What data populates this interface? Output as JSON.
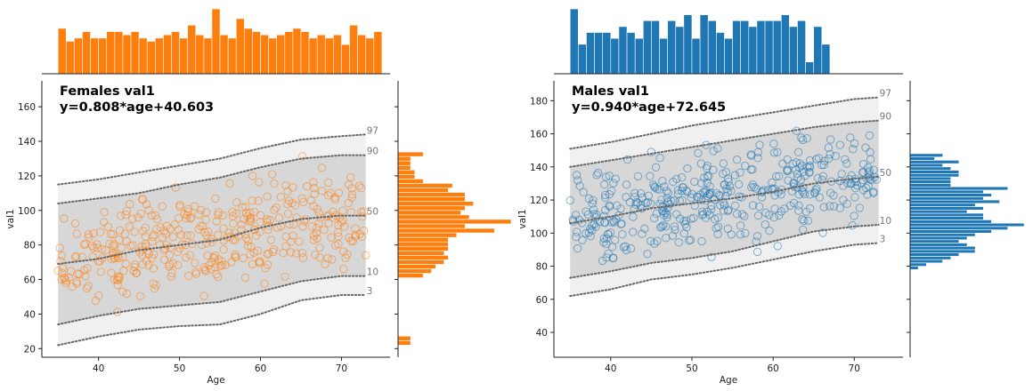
{
  "chart_data": [
    {
      "type": "scatter",
      "name": "females",
      "color": "#ff7f0e",
      "title_line1": "Females val1",
      "title_line2": "y=0.808*age+40.603",
      "xlabel": "Age",
      "ylabel": "val1",
      "xlim": [
        33,
        76
      ],
      "ylim": [
        15,
        175
      ],
      "xticks": [
        40,
        50,
        60,
        70
      ],
      "yticks": [
        20,
        40,
        60,
        80,
        100,
        120,
        140,
        160
      ],
      "regression": {
        "slope": 0.808,
        "intercept": 40.603
      },
      "percentiles": [
        {
          "label": "3",
          "x": [
            35,
            40,
            45,
            50,
            55,
            60,
            65,
            70,
            73
          ],
          "y": [
            22,
            27,
            31,
            33,
            34,
            40,
            48,
            51,
            51
          ]
        },
        {
          "label": "10",
          "x": [
            35,
            40,
            45,
            50,
            55,
            60,
            65,
            70,
            73
          ],
          "y": [
            34,
            39,
            43,
            45,
            47,
            53,
            59,
            62,
            62
          ]
        },
        {
          "label": "50",
          "x": [
            35,
            40,
            45,
            50,
            55,
            60,
            65,
            70,
            73
          ],
          "y": [
            69,
            72,
            77,
            80,
            83,
            90,
            95,
            97,
            97
          ]
        },
        {
          "label": "90",
          "x": [
            35,
            40,
            45,
            50,
            55,
            60,
            65,
            70,
            73
          ],
          "y": [
            104,
            107,
            110,
            115,
            119,
            125,
            130,
            132,
            132
          ]
        },
        {
          "label": "97",
          "x": [
            35,
            40,
            45,
            50,
            55,
            60,
            65,
            70,
            73
          ],
          "y": [
            115,
            118,
            122,
            126,
            130,
            136,
            141,
            143,
            144
          ]
        }
      ],
      "hist_x": {
        "bin_start": 35,
        "bin_width": 1,
        "counts": [
          14,
          10,
          11,
          13,
          11,
          11,
          13,
          13,
          12,
          13,
          11,
          10,
          11,
          12,
          13,
          11,
          15,
          12,
          11,
          20,
          12,
          11,
          17,
          14,
          13,
          12,
          11,
          12,
          13,
          14,
          13,
          11,
          12,
          11,
          12,
          9,
          15,
          12,
          11,
          13
        ],
        "max": 20
      },
      "hist_y": {
        "bin_start": 22,
        "bin_width": 2.6,
        "counts": [
          3,
          3,
          0,
          0,
          0,
          0,
          0,
          0,
          0,
          0,
          0,
          0,
          0,
          0,
          0,
          6,
          8,
          9,
          11,
          12,
          11,
          12,
          12,
          12,
          14,
          23,
          16,
          27,
          17,
          15,
          16,
          18,
          16,
          16,
          12,
          13,
          6,
          4,
          4,
          3,
          3,
          3,
          6
        ],
        "max": 27
      }
    },
    {
      "type": "scatter",
      "name": "males",
      "color": "#1f77b4",
      "title_line1": "Males val1",
      "title_line2": "y=0.940*age+72.645",
      "xlabel": "Age",
      "ylabel": "val1",
      "xlim": [
        33,
        76
      ],
      "ylim": [
        25,
        192
      ],
      "xticks": [
        40,
        50,
        60,
        70
      ],
      "yticks": [
        40,
        60,
        80,
        100,
        120,
        140,
        160,
        180
      ],
      "regression": {
        "slope": 0.94,
        "intercept": 72.645
      },
      "percentiles": [
        {
          "label": "3",
          "x": [
            35,
            40,
            45,
            50,
            55,
            60,
            65,
            70,
            73
          ],
          "y": [
            62,
            66,
            72,
            75,
            79,
            84,
            89,
            93,
            94
          ]
        },
        {
          "label": "10",
          "x": [
            35,
            40,
            45,
            50,
            55,
            60,
            65,
            70,
            73
          ],
          "y": [
            73,
            77,
            82,
            85,
            89,
            95,
            101,
            104,
            105
          ]
        },
        {
          "label": "50",
          "x": [
            35,
            40,
            45,
            50,
            55,
            60,
            65,
            70,
            73
          ],
          "y": [
            106,
            110,
            115,
            118,
            121,
            125,
            130,
            133,
            134
          ]
        },
        {
          "label": "90",
          "x": [
            35,
            40,
            45,
            50,
            55,
            60,
            65,
            70,
            73
          ],
          "y": [
            140,
            144,
            148,
            152,
            156,
            160,
            164,
            167,
            168
          ]
        },
        {
          "label": "97",
          "x": [
            35,
            40,
            45,
            50,
            55,
            60,
            65,
            70,
            73
          ],
          "y": [
            151,
            155,
            160,
            165,
            169,
            173,
            177,
            181,
            182
          ]
        }
      ],
      "hist_x": {
        "bin_start": 35,
        "bin_width": 1,
        "counts": [
          11,
          5,
          7,
          7,
          7,
          6,
          8,
          7,
          6,
          9,
          9,
          6,
          9,
          8,
          10,
          6,
          10,
          9,
          7,
          6,
          9,
          9,
          8,
          9,
          9,
          9,
          10,
          8,
          9,
          2,
          8,
          5
        ],
        "max": 11
      },
      "hist_y": {
        "bin_start": 78,
        "bin_width": 2.0,
        "counts": [
          1,
          2,
          4,
          5,
          6,
          8,
          8,
          7,
          6,
          7,
          8,
          10,
          12,
          14,
          10,
          9,
          9,
          7,
          9,
          8,
          11,
          9,
          10,
          9,
          12,
          5,
          5,
          5,
          6,
          6,
          5,
          4,
          6,
          3,
          4
        ],
        "max": 14
      }
    }
  ]
}
